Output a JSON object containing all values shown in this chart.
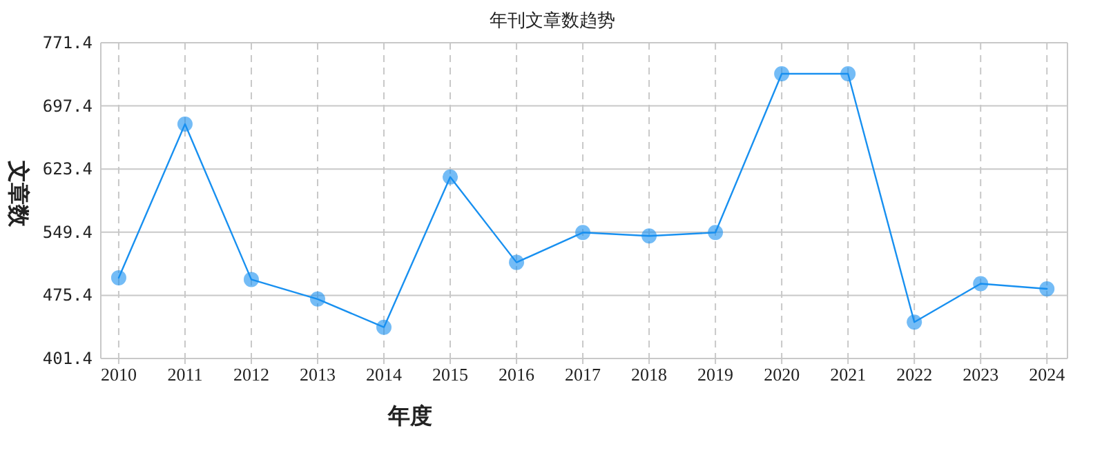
{
  "chart_data": {
    "type": "line",
    "title": "年刊文章数趋势",
    "xlabel": "年度",
    "ylabel": "文章数",
    "categories": [
      "2010",
      "2011",
      "2012",
      "2013",
      "2014",
      "2015",
      "2016",
      "2017",
      "2018",
      "2019",
      "2020",
      "2021",
      "2022",
      "2023",
      "2024"
    ],
    "series": [
      {
        "color": "#1890f0",
        "values": [
          496,
          676,
          494,
          471,
          438,
          614,
          514,
          549,
          545,
          549,
          735,
          735,
          444,
          489,
          483
        ]
      }
    ],
    "ylim": [
      401.4,
      771.4
    ],
    "yticks": [
      401.4,
      475.4,
      549.4,
      623.4,
      697.4,
      771.4
    ],
    "grid": true,
    "marker": "circle",
    "line_style": "solid"
  }
}
